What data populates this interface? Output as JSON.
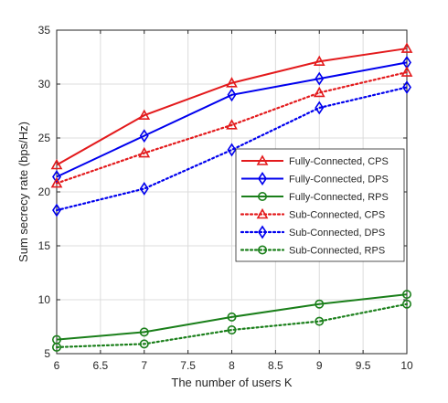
{
  "chart_data": {
    "type": "line",
    "xlabel": "The number of users K",
    "ylabel": "Sum secrecy rate (bps/Hz)",
    "xlim": [
      6,
      10
    ],
    "ylim": [
      5,
      35
    ],
    "xticks": [
      "6",
      "6.5",
      "7",
      "7.5",
      "8",
      "8.5",
      "9",
      "9.5",
      "10"
    ],
    "yticks": [
      "5",
      "10",
      "15",
      "20",
      "25",
      "30",
      "35"
    ],
    "grid": true,
    "legend_position": "right",
    "x": [
      6,
      7,
      8,
      9,
      10
    ],
    "series": [
      {
        "name": "Fully-Connected, CPS",
        "values": [
          22.5,
          27.1,
          30.1,
          32.1,
          33.3
        ],
        "color": "#e31a1c",
        "line": "solid",
        "marker": "triangle"
      },
      {
        "name": "Fully-Connected, DPS",
        "values": [
          21.4,
          25.2,
          29.0,
          30.5,
          32.0
        ],
        "color": "#0000ee",
        "line": "solid",
        "marker": "diamond"
      },
      {
        "name": "Fully-Connected, RPS",
        "values": [
          6.3,
          7.0,
          8.4,
          9.6,
          10.5
        ],
        "color": "#1a7f1a",
        "line": "solid",
        "marker": "circle"
      },
      {
        "name": "Sub-Connected, CPS",
        "values": [
          20.8,
          23.6,
          26.2,
          29.2,
          31.1
        ],
        "color": "#e31a1c",
        "line": "dotted",
        "marker": "triangle"
      },
      {
        "name": "Sub-Connected, DPS",
        "values": [
          18.3,
          20.3,
          23.9,
          27.8,
          29.7
        ],
        "color": "#0000ee",
        "line": "dotted",
        "marker": "diamond"
      },
      {
        "name": "Sub-Connected, RPS",
        "values": [
          5.6,
          5.9,
          7.2,
          8.0,
          9.6
        ],
        "color": "#1a7f1a",
        "line": "dotted",
        "marker": "circle"
      }
    ]
  }
}
